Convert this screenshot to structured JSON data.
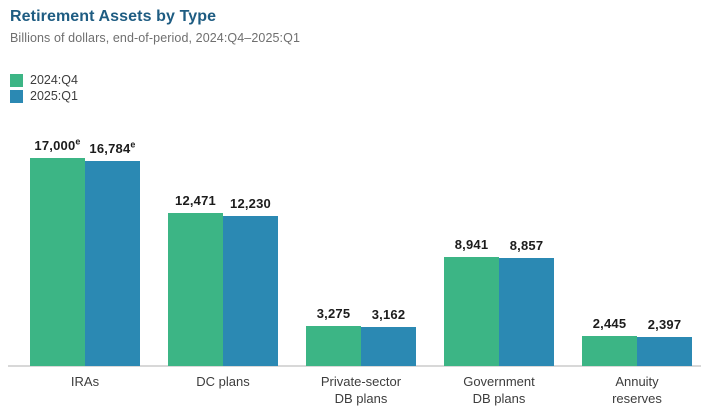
{
  "header": {
    "title": "Retirement Assets by Type",
    "subtitle": "Billions of dollars, end-of-period, 2024:Q4–2025:Q1"
  },
  "chart_data": {
    "type": "bar",
    "title": "Retirement Assets by Type",
    "subtitle": "Billions of dollars, end-of-period, 2024:Q4–2025:Q1",
    "unit": "billions of dollars",
    "categories": [
      "IRAs",
      "DC plans",
      "Private-sector\nDB plans",
      "Government\nDB plans",
      "Annuity\nreserves"
    ],
    "series": [
      {
        "name": "2024:Q4",
        "color": "#3CB585",
        "values": [
          17000,
          12471,
          3275,
          8941,
          2445
        ],
        "labels": [
          "17,000",
          "12,471",
          "3,275",
          "8,941",
          "2,445"
        ],
        "label_flags": [
          "e",
          "",
          "",
          "",
          ""
        ]
      },
      {
        "name": "2025:Q1",
        "color": "#2B89B3",
        "values": [
          16784,
          12230,
          3162,
          8857,
          2397
        ],
        "labels": [
          "16,784",
          "12,230",
          "3,162",
          "8,857",
          "2,397"
        ],
        "label_flags": [
          "e",
          "",
          "",
          "",
          ""
        ]
      }
    ],
    "ylim": [
      0,
      17000
    ],
    "grid": false,
    "legend_position": "top-left",
    "axis_color": "#D8D8D8",
    "value_label_color": "#1C1C1C",
    "category_label_color": "#3D3D3D",
    "title_color": "#1E5C82",
    "subtitle_color": "#6F6F6F"
  }
}
